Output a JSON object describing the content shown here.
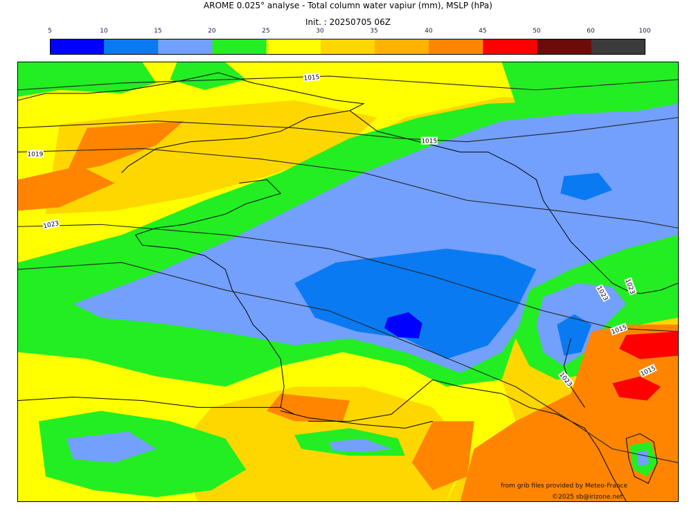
{
  "title": "AROME 0.025° analyse - Total column water vapiur (mm), MSLP (hPa)",
  "subtitle": "Init. : 20250705 06Z",
  "legend": {
    "ticks": [
      "5",
      "10",
      "15",
      "20",
      "25",
      "30",
      "35",
      "40",
      "45",
      "50",
      "60",
      "100"
    ],
    "colors": [
      "#0000ff",
      "#0a7af2",
      "#72a0fc",
      "#22ee22",
      "#ffff00",
      "#ffd700",
      "#ffb300",
      "#ff8500",
      "#ff0000",
      "#6b0c0a",
      "#3b3b3b"
    ]
  },
  "isobar_labels": [
    "1015",
    "1015",
    "1019",
    "1023",
    "1015",
    "1023",
    "1023",
    "1023",
    "1015"
  ],
  "credits": {
    "source": "from grib files provided by Meteo-France",
    "copyright": "©2025 sb@irizone.net"
  },
  "palette": {
    "pale_blue": "#72a0fc",
    "mid_blue": "#0a7af2",
    "deep_blue": "#0000ff",
    "green": "#22ee22",
    "yellow": "#ffff00",
    "gold": "#ffd700",
    "amber": "#ffb300",
    "orange": "#ff8500",
    "red": "#ff0000"
  }
}
